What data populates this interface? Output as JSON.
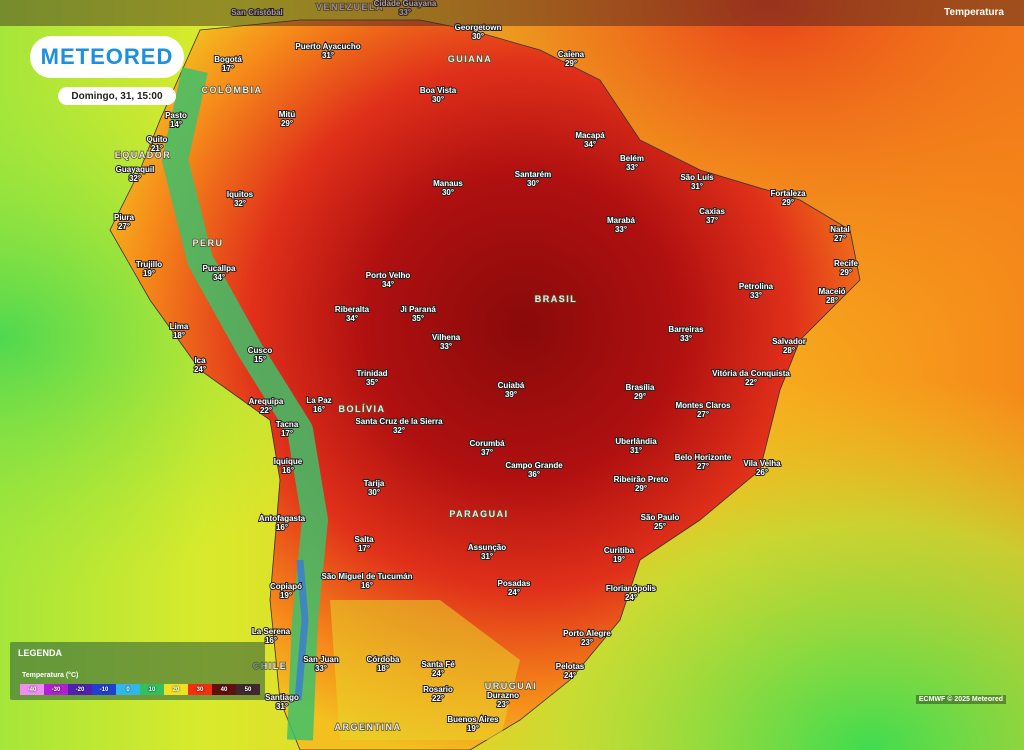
{
  "header": {
    "logo": "METEORED",
    "datetime": "Domingo, 31, 15:00",
    "layer": "Temperatura"
  },
  "countries": [
    "VENEZUELA",
    "GUIANA",
    "COLÔMBIA",
    "EQUADOR",
    "PERU",
    "BRASIL",
    "BOLÍVIA",
    "PARAGUAI",
    "CHILE",
    "URUGUAI",
    "ARGENTINA"
  ],
  "cities": [
    {
      "name": "San Cristóbal"
    },
    {
      "name": "Cidade Guayana",
      "temp": "33°"
    },
    {
      "name": "Bogotá",
      "temp": "17°"
    },
    {
      "name": "Puerto Ayacucho",
      "temp": "31°"
    },
    {
      "name": "Georgetown",
      "temp": "30°"
    },
    {
      "name": "Caiena",
      "temp": "29°"
    },
    {
      "name": "Boa Vista",
      "temp": "30°"
    },
    {
      "name": "Pasto",
      "temp": "14°"
    },
    {
      "name": "Mitú",
      "temp": "29°"
    },
    {
      "name": "Quito",
      "temp": "21°"
    },
    {
      "name": "Guayaquil",
      "temp": "32°"
    },
    {
      "name": "Macapá",
      "temp": "34°"
    },
    {
      "name": "Belém",
      "temp": "33°"
    },
    {
      "name": "São Luís",
      "temp": "31°"
    },
    {
      "name": "Manaus",
      "temp": "30°"
    },
    {
      "name": "Santarém",
      "temp": "30°"
    },
    {
      "name": "Fortaleza",
      "temp": "29°"
    },
    {
      "name": "Iquitos",
      "temp": "32°"
    },
    {
      "name": "Piura",
      "temp": "27°"
    },
    {
      "name": "Marabá",
      "temp": "33°"
    },
    {
      "name": "Caxias",
      "temp": "37°"
    },
    {
      "name": "Natal",
      "temp": "27°"
    },
    {
      "name": "Trujillo",
      "temp": "19°"
    },
    {
      "name": "Pucallpa",
      "temp": "34°"
    },
    {
      "name": "Recife",
      "temp": "29°"
    },
    {
      "name": "Porto Velho",
      "temp": "34°"
    },
    {
      "name": "Petrolina",
      "temp": "33°"
    },
    {
      "name": "Maceió",
      "temp": "28°"
    },
    {
      "name": "Riberalta",
      "temp": "34°"
    },
    {
      "name": "Ji Paraná",
      "temp": "35°"
    },
    {
      "name": "Vilhena",
      "temp": "33°"
    },
    {
      "name": "Barreiras",
      "temp": "33°"
    },
    {
      "name": "Lima",
      "temp": "18°"
    },
    {
      "name": "Salvador",
      "temp": "28°"
    },
    {
      "name": "Cusco",
      "temp": "15°"
    },
    {
      "name": "Ica",
      "temp": "24°"
    },
    {
      "name": "Trinidad",
      "temp": "35°"
    },
    {
      "name": "Vitória da Conquista",
      "temp": "22°"
    },
    {
      "name": "Brasília",
      "temp": "29°"
    },
    {
      "name": "Cuiabá",
      "temp": "39°"
    },
    {
      "name": "Arequipa",
      "temp": "22°"
    },
    {
      "name": "La Paz",
      "temp": "16°"
    },
    {
      "name": "Montes Claros",
      "temp": "27°"
    },
    {
      "name": "Santa Cruz de la Sierra",
      "temp": "32°"
    },
    {
      "name": "Tacna",
      "temp": "17°"
    },
    {
      "name": "Corumbá",
      "temp": "37°"
    },
    {
      "name": "Uberlândia",
      "temp": "31°"
    },
    {
      "name": "Campo Grande",
      "temp": "36°"
    },
    {
      "name": "Belo Horizonte",
      "temp": "27°"
    },
    {
      "name": "Iquique",
      "temp": "16°"
    },
    {
      "name": "Vila Velha",
      "temp": "26°"
    },
    {
      "name": "Ribeirão Preto",
      "temp": "29°"
    },
    {
      "name": "Tarija",
      "temp": "30°"
    },
    {
      "name": "Antofagasta",
      "temp": "16°"
    },
    {
      "name": "São Paulo",
      "temp": "25°"
    },
    {
      "name": "Salta",
      "temp": "17°"
    },
    {
      "name": "Assunção",
      "temp": "31°"
    },
    {
      "name": "Curitiba",
      "temp": "19°"
    },
    {
      "name": "São Miguel de Tucumán",
      "temp": "16°"
    },
    {
      "name": "Posadas",
      "temp": "24°"
    },
    {
      "name": "Copiapó",
      "temp": "19°"
    },
    {
      "name": "Florianópolis",
      "temp": "24°"
    },
    {
      "name": "Porto Alegre",
      "temp": "23°"
    },
    {
      "name": "La Serena",
      "temp": "16°"
    },
    {
      "name": "Córdoba",
      "temp": "18°"
    },
    {
      "name": "San Juan",
      "temp": "33°"
    },
    {
      "name": "Santa Fé",
      "temp": "24°"
    },
    {
      "name": "Pelotas",
      "temp": "24°"
    },
    {
      "name": "Rosario",
      "temp": "22°"
    },
    {
      "name": "Durazno",
      "temp": "23°"
    },
    {
      "name": "Santiago",
      "temp": "31°"
    },
    {
      "name": "Buenos Aires",
      "temp": "19°"
    }
  ],
  "legend": {
    "title": "LEGENDA",
    "subtitle": "Temperatura (°C)",
    "ticks": [
      -40,
      -30,
      -20,
      -10,
      0,
      10,
      20,
      30,
      40,
      50
    ]
  },
  "credit": "ECMWF © 2025 Meteored"
}
